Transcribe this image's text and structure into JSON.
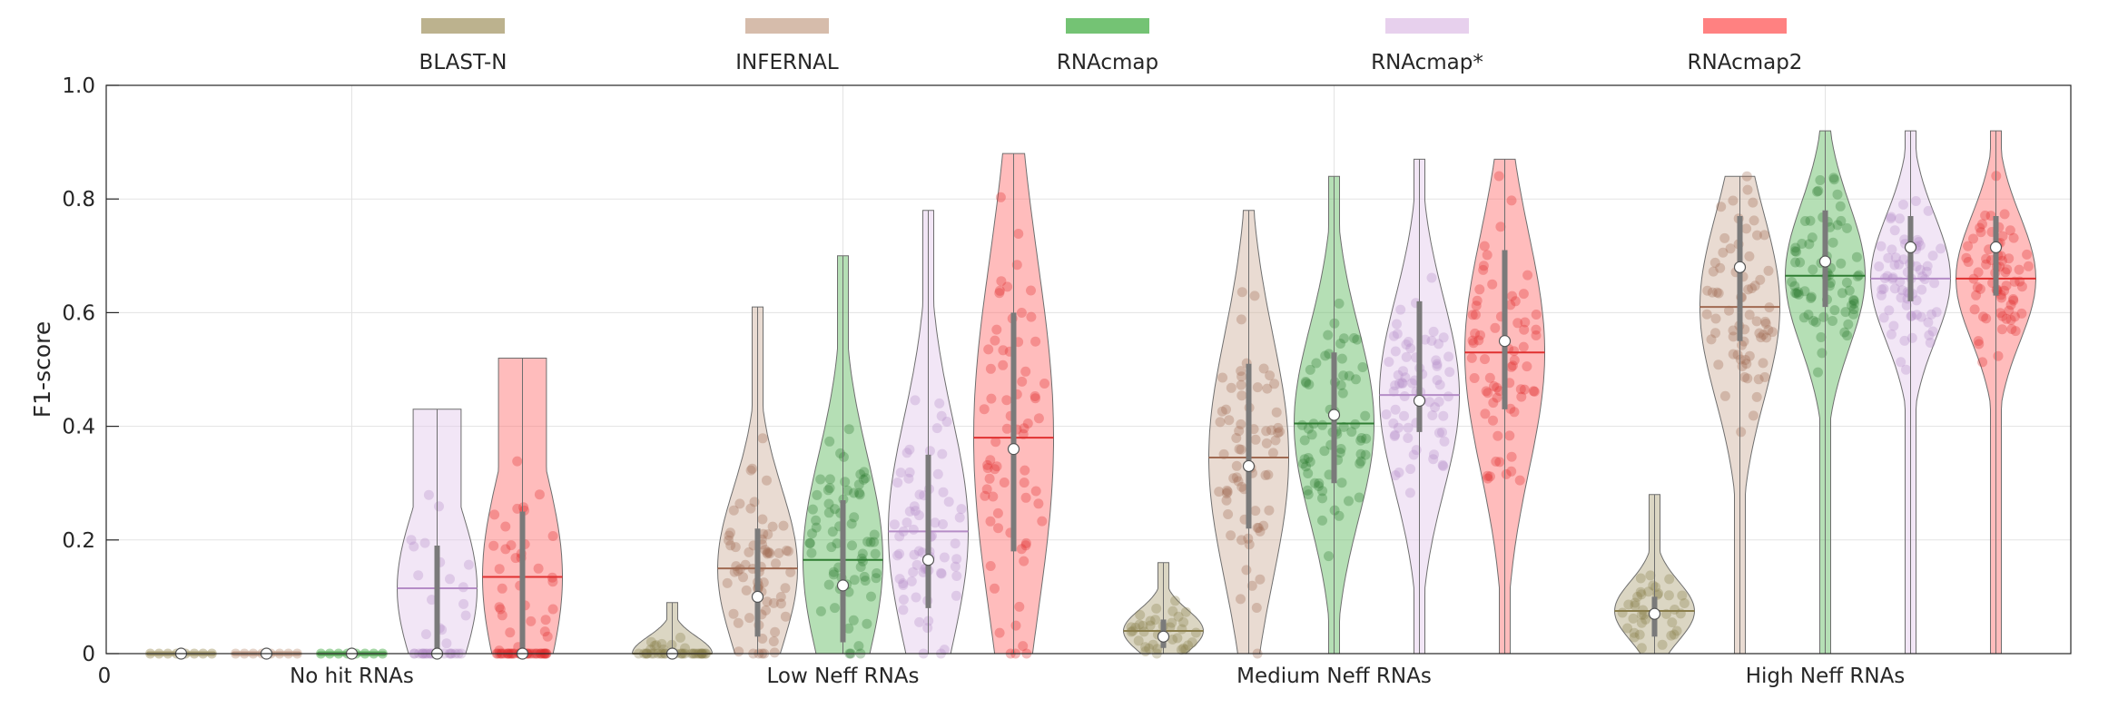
{
  "chart_data": {
    "type": "violin",
    "title": "",
    "xlabel": "",
    "ylabel": "F1-score",
    "ylim": [
      0,
      1
    ],
    "yticks": [
      "0",
      "0.2",
      "0.4",
      "0.6",
      "0.8",
      "1.0"
    ],
    "grid": true,
    "legend_position": "top",
    "categories": [
      "No hit RNAs",
      "Low Neff RNAs",
      "Medium Neff RNAs",
      "High Neff RNAs"
    ],
    "series": [
      {
        "name": "BLAST-N",
        "color": "#b0a57a",
        "line_color": "#8a7e4c",
        "median": [
          0,
          0,
          0.03,
          0.07
        ],
        "mean": [
          0,
          0,
          0.04,
          0.075
        ],
        "q1": [
          0,
          0,
          0.01,
          0.03
        ],
        "q3": [
          0,
          0,
          0.06,
          0.1
        ],
        "max": [
          0,
          0.09,
          0.16,
          0.28
        ]
      },
      {
        "name": "INFERNAL",
        "color": "#cfb09c",
        "line_color": "#a06a52",
        "median": [
          0,
          0.1,
          0.33,
          0.68
        ],
        "mean": [
          0,
          0.15,
          0.345,
          0.61
        ],
        "q1": [
          0,
          0.03,
          0.22,
          0.55
        ],
        "q3": [
          0,
          0.22,
          0.51,
          0.77
        ],
        "max": [
          0,
          0.61,
          0.78,
          0.84
        ]
      },
      {
        "name": "RNAcmap",
        "color": "#5cb85c",
        "line_color": "#2e7d32",
        "median": [
          0,
          0.12,
          0.42,
          0.69
        ],
        "mean": [
          0,
          0.165,
          0.405,
          0.665
        ],
        "q1": [
          0,
          0.02,
          0.3,
          0.61
        ],
        "q3": [
          0,
          0.27,
          0.53,
          0.78
        ],
        "max": [
          0,
          0.7,
          0.84,
          0.92
        ]
      },
      {
        "name": "RNAcmap*",
        "color": "#e3c8ea",
        "line_color": "#b58dc7",
        "median": [
          0,
          0.165,
          0.445,
          0.715
        ],
        "mean": [
          0.115,
          0.215,
          0.455,
          0.66
        ],
        "q1": [
          0,
          0.08,
          0.39,
          0.62
        ],
        "q3": [
          0.19,
          0.35,
          0.62,
          0.77
        ],
        "max": [
          0.43,
          0.78,
          0.87,
          0.92
        ]
      },
      {
        "name": "RNAcmap2",
        "color": "#ff6b6b",
        "line_color": "#e03030",
        "median": [
          0,
          0.36,
          0.55,
          0.715
        ],
        "mean": [
          0.135,
          0.38,
          0.53,
          0.66
        ],
        "q1": [
          0,
          0.18,
          0.43,
          0.63
        ],
        "q3": [
          0.25,
          0.6,
          0.71,
          0.77
        ],
        "max": [
          0.52,
          0.88,
          0.87,
          0.92
        ]
      }
    ]
  }
}
